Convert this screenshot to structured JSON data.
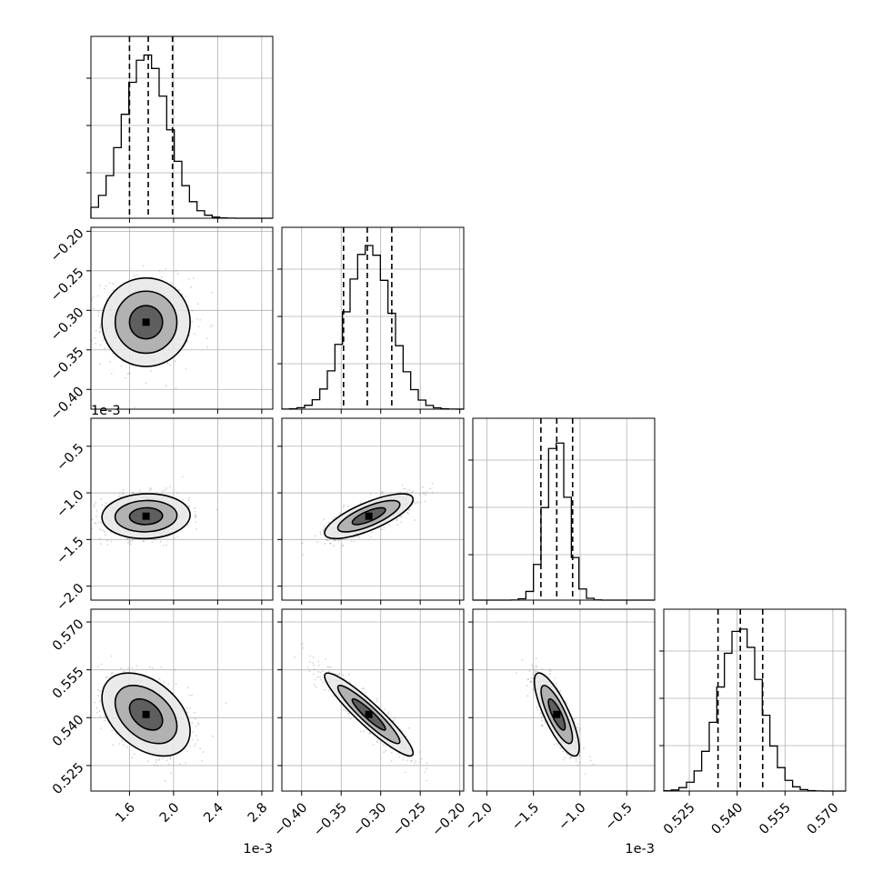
{
  "chart_data": {
    "type": "corner",
    "grid": true,
    "parameters": [
      {
        "id": "p1",
        "range": [
          1.25,
          2.9
        ],
        "ticks": [
          1.6,
          2.0,
          2.4,
          2.8
        ],
        "tick_labels": [
          "1.6",
          "2.0",
          "2.4",
          "2.8"
        ],
        "offset_label": "1e-3",
        "hist_peak": 1.75,
        "hist_sigma": 0.2,
        "quantiles": [
          1.6,
          1.77,
          1.99
        ]
      },
      {
        "id": "p2",
        "range": [
          -0.425,
          -0.195
        ],
        "ticks": [
          -0.4,
          -0.35,
          -0.3,
          -0.25,
          -0.2
        ],
        "tick_labels": [
          "−0.40",
          "−0.35",
          "−0.30",
          "−0.25",
          "−0.20"
        ],
        "offset_label": "",
        "hist_peak": -0.315,
        "hist_sigma": 0.028,
        "quantiles": [
          -0.347,
          -0.317,
          -0.286
        ]
      },
      {
        "id": "p3",
        "range": [
          -2.15,
          -0.2
        ],
        "ticks": [
          -2.0,
          -1.5,
          -1.0,
          -0.5
        ],
        "tick_labels": [
          "−2.0",
          "−1.5",
          "−1.0",
          "−0.5"
        ],
        "offset_label": "1e-3",
        "hist_peak": -1.25,
        "hist_sigma": 0.12,
        "quantiles": [
          -1.42,
          -1.25,
          -1.08
        ]
      },
      {
        "id": "p4",
        "range": [
          0.517,
          0.574
        ],
        "ticks": [
          0.525,
          0.54,
          0.555,
          0.57
        ],
        "tick_labels": [
          "0.525",
          "0.540",
          "0.555",
          "0.570"
        ],
        "offset_label": "",
        "hist_peak": 0.541,
        "hist_sigma": 0.0065,
        "quantiles": [
          0.534,
          0.541,
          0.548
        ]
      }
    ],
    "correlations": [
      [
        1,
        0.0,
        0.05,
        -0.4
      ],
      [
        0.0,
        1,
        0.75,
        -0.93
      ],
      [
        0.05,
        0.75,
        1,
        -0.8
      ],
      [
        -0.4,
        -0.93,
        -0.8,
        1
      ]
    ],
    "colors": {
      "hist": "#000000",
      "contour": "#000000",
      "points": "#808080",
      "grid": "#b0b0b0"
    }
  }
}
